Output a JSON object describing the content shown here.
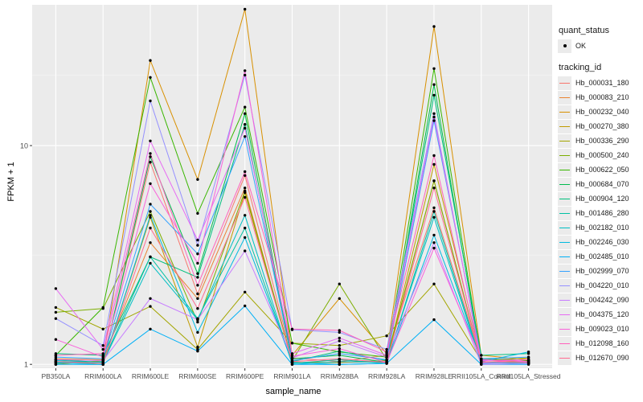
{
  "chart_data": {
    "type": "line",
    "xlabel": "sample_name",
    "ylabel": "FPKM + 1",
    "y_scale": "log10",
    "ylim": [
      0.96,
      44
    ],
    "y_ticks": [
      {
        "value": 1,
        "label": "1"
      },
      {
        "value": 10,
        "label": "10"
      }
    ],
    "grid": true,
    "legend_position": "right",
    "categories": [
      "PB350LA",
      "RRIM600LA",
      "RRIM600LE",
      "RRIM600SE",
      "RRIM600PE",
      "RRIM901LA",
      "RRIM928BA",
      "RRIM928LA",
      "RRIM928LE",
      "RRII105LA_Control",
      "RRII105LA_Stressed"
    ],
    "shape_legend": {
      "title": "quant_status",
      "items": [
        "OK"
      ]
    },
    "color_legend_title": "tracking_id",
    "series": [
      {
        "name": "Hb_000031_180",
        "color": "#F8766D",
        "values": [
          1.02,
          1.03,
          8.4,
          2.1,
          7.3,
          1.07,
          1.03,
          1.1,
          5.2,
          1.05,
          1.02
        ]
      },
      {
        "name": "Hb_000083_210",
        "color": "#EA8331",
        "values": [
          1.06,
          1.05,
          3.6,
          2.0,
          6.4,
          1.02,
          1.02,
          1.03,
          6.9,
          1.02,
          1.01
        ]
      },
      {
        "name": "Hb_000232_040",
        "color": "#D89000",
        "values": [
          1.0,
          1.04,
          24.5,
          7.0,
          42.0,
          1.1,
          2.0,
          1.12,
          35.0,
          1.1,
          1.05
        ]
      },
      {
        "name": "Hb_000270_380",
        "color": "#C09B00",
        "values": [
          1.03,
          1.0,
          4.7,
          1.2,
          6.1,
          1.02,
          1.02,
          1.04,
          8.2,
          1.06,
          1.04
        ]
      },
      {
        "name": "Hb_000336_290",
        "color": "#A3A500",
        "values": [
          1.82,
          1.45,
          1.84,
          1.17,
          2.14,
          1.25,
          1.22,
          1.35,
          2.33,
          1.04,
          1.07
        ]
      },
      {
        "name": "Hb_000500_240",
        "color": "#7CAE00",
        "values": [
          1.73,
          1.8,
          5.0,
          1.56,
          6.2,
          1.04,
          2.33,
          1.05,
          6.9,
          1.02,
          1.03
        ]
      },
      {
        "name": "Hb_000622_050",
        "color": "#39B600",
        "values": [
          1.1,
          1.82,
          20.5,
          4.9,
          15.0,
          1.25,
          1.14,
          1.08,
          22.5,
          1.06,
          1.04
        ]
      },
      {
        "name": "Hb_000684_070",
        "color": "#00BB4E",
        "values": [
          1.05,
          1.02,
          8.9,
          2.6,
          14.0,
          1.06,
          1.1,
          1.02,
          19.0,
          1.03,
          1.01
        ]
      },
      {
        "name": "Hb_000904_120",
        "color": "#00BF7D",
        "values": [
          1.12,
          1.1,
          3.1,
          2.5,
          12.5,
          1.03,
          1.15,
          1.04,
          17.0,
          1.1,
          1.12
        ]
      },
      {
        "name": "Hb_001486_280",
        "color": "#00C1A3",
        "values": [
          1.01,
          1.03,
          3.1,
          1.62,
          4.2,
          1.01,
          1.05,
          1.01,
          5.0,
          1.02,
          1.01
        ]
      },
      {
        "name": "Hb_002182_010",
        "color": "#00BFC4",
        "values": [
          1.04,
          1.02,
          2.9,
          1.6,
          4.8,
          1.0,
          1.03,
          1.02,
          4.7,
          1.01,
          1.02
        ]
      },
      {
        "name": "Hb_002246_030",
        "color": "#00BAE0",
        "values": [
          1.02,
          1.0,
          4.8,
          1.4,
          3.8,
          1.02,
          1.0,
          1.01,
          3.9,
          1.03,
          1.14
        ]
      },
      {
        "name": "Hb_002485_010",
        "color": "#00B0F6",
        "values": [
          1.0,
          1.0,
          1.45,
          1.15,
          1.85,
          1.0,
          1.0,
          1.01,
          1.6,
          1.0,
          1.0
        ]
      },
      {
        "name": "Hb_002999_070",
        "color": "#35A2FF",
        "values": [
          1.08,
          1.06,
          5.4,
          3.2,
          11.0,
          1.04,
          1.12,
          1.05,
          13.0,
          1.06,
          1.08
        ]
      },
      {
        "name": "Hb_004220_010",
        "color": "#9590FF",
        "values": [
          1.62,
          1.22,
          16.0,
          3.5,
          21.0,
          1.44,
          1.4,
          1.17,
          14.0,
          1.01,
          1.03
        ]
      },
      {
        "name": "Hb_004242_090",
        "color": "#C77CFF",
        "values": [
          1.05,
          1.04,
          2.0,
          1.6,
          3.3,
          1.07,
          1.28,
          1.08,
          3.6,
          1.0,
          1.01
        ]
      },
      {
        "name": "Hb_004375_120",
        "color": "#E76BF3",
        "values": [
          2.22,
          1.17,
          10.5,
          3.7,
          12.0,
          1.12,
          1.32,
          1.1,
          13.5,
          1.04,
          1.05
        ]
      },
      {
        "name": "Hb_009023_010",
        "color": "#FA62DB",
        "values": [
          1.3,
          1.08,
          6.7,
          2.9,
          22.0,
          1.09,
          1.18,
          1.02,
          3.4,
          1.05,
          1.03
        ]
      },
      {
        "name": "Hb_012098_160",
        "color": "#FF62BC",
        "values": [
          1.1,
          1.12,
          9.2,
          2.3,
          7.6,
          1.45,
          1.43,
          1.14,
          9.0,
          1.02,
          1.05
        ]
      },
      {
        "name": "Hb_012670_090",
        "color": "#FF6C91",
        "values": [
          1.03,
          1.01,
          4.2,
          1.8,
          5.8,
          1.03,
          1.06,
          1.02,
          6.4,
          1.03,
          1.02
        ]
      }
    ]
  }
}
